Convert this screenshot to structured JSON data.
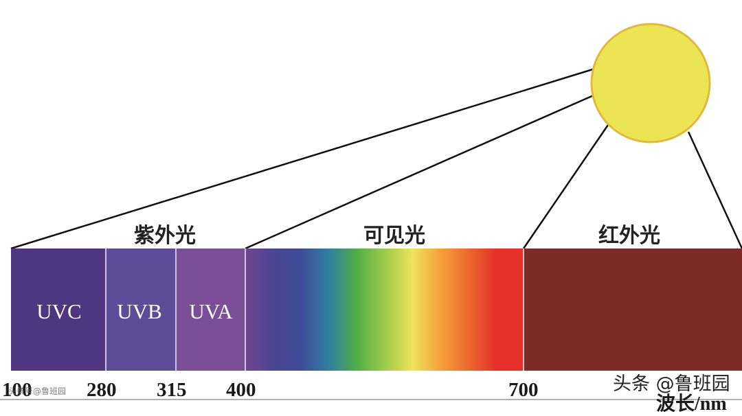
{
  "region_labels": {
    "uv": "紫外光",
    "visible": "可见光",
    "infrared": "红外光"
  },
  "band_labels": {
    "uvc": "UVC",
    "uvb": "UVB",
    "uva": "UVA"
  },
  "axis": {
    "ticks": [
      "100",
      "280",
      "315",
      "400",
      "700"
    ],
    "unit_label": "波长/nm"
  },
  "watermark": {
    "main": "头条 @鲁班园",
    "small": "头条号@鲁班园"
  },
  "colors": {
    "sun": "#ece553",
    "sun_border": "#e2b93a",
    "uvc": "#4f3680",
    "uvb": "#5d4d98",
    "uva": "#7a4f98",
    "infrared": "#7c2b29",
    "lines": "#111111",
    "axis": "#999999"
  },
  "visible_gradient_colors": [
    "#6f4790",
    "#4b4694",
    "#3f4c99",
    "#2f7fa0",
    "#4fae45",
    "#9ccb4a",
    "#ede45a",
    "#f5a23c",
    "#ec6a2d",
    "#e5312a",
    "#e5312a"
  ]
}
